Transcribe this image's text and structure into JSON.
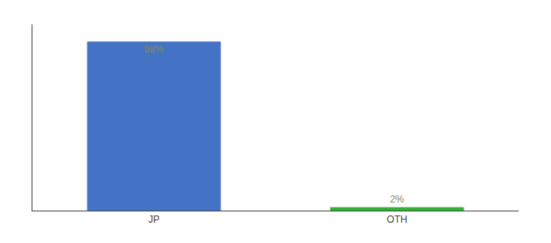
{
  "chart_data": {
    "type": "bar",
    "categories": [
      "JP",
      "OTH"
    ],
    "values": [
      98,
      2
    ],
    "value_labels": [
      "98%",
      "2%"
    ],
    "colors": [
      "#4472c4",
      "#2db52d"
    ],
    "ylim": [
      0,
      108
    ],
    "data_labels": true,
    "tick_labels": "x",
    "grid": false
  }
}
